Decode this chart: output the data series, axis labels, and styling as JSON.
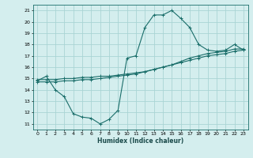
{
  "xlabel": "Humidex (Indice chaleur)",
  "ylabel": "",
  "bg_color": "#d4eeee",
  "grid_color": "#aad4d4",
  "line_color": "#1a6e6a",
  "xlim": [
    -0.5,
    23.5
  ],
  "ylim": [
    10.5,
    21.5
  ],
  "xticks": [
    0,
    1,
    2,
    3,
    4,
    5,
    6,
    7,
    8,
    9,
    10,
    11,
    12,
    13,
    14,
    15,
    16,
    17,
    18,
    19,
    20,
    21,
    22,
    23
  ],
  "yticks": [
    11,
    12,
    13,
    14,
    15,
    16,
    17,
    18,
    19,
    20,
    21
  ],
  "curve1_x": [
    0,
    1,
    2,
    3,
    4,
    5,
    6,
    7,
    8,
    9,
    10,
    11,
    12,
    13,
    14,
    15,
    16,
    17,
    18,
    19,
    20,
    21,
    22,
    23
  ],
  "curve1_y": [
    14.8,
    15.2,
    14.0,
    13.4,
    11.9,
    11.6,
    11.5,
    11.0,
    11.4,
    12.2,
    16.8,
    17.0,
    19.5,
    20.6,
    20.6,
    21.0,
    20.3,
    19.5,
    18.0,
    17.5,
    17.4,
    17.5,
    18.0,
    17.5
  ],
  "curve2_x": [
    0,
    1,
    2,
    3,
    4,
    5,
    6,
    7,
    8,
    9,
    10,
    11,
    12,
    13,
    14,
    15,
    16,
    17,
    18,
    19,
    20,
    21,
    22,
    23
  ],
  "curve2_y": [
    14.9,
    14.9,
    14.9,
    15.0,
    15.0,
    15.1,
    15.1,
    15.2,
    15.2,
    15.3,
    15.4,
    15.5,
    15.6,
    15.8,
    16.0,
    16.2,
    16.5,
    16.8,
    17.0,
    17.2,
    17.3,
    17.4,
    17.6,
    17.6
  ],
  "curve3_x": [
    0,
    1,
    2,
    3,
    4,
    5,
    6,
    7,
    8,
    9,
    10,
    11,
    12,
    13,
    14,
    15,
    16,
    17,
    18,
    19,
    20,
    21,
    22,
    23
  ],
  "curve3_y": [
    14.7,
    14.7,
    14.7,
    14.8,
    14.8,
    14.9,
    14.9,
    15.0,
    15.1,
    15.2,
    15.3,
    15.4,
    15.6,
    15.8,
    16.0,
    16.2,
    16.4,
    16.6,
    16.8,
    17.0,
    17.1,
    17.2,
    17.4,
    17.5
  ]
}
